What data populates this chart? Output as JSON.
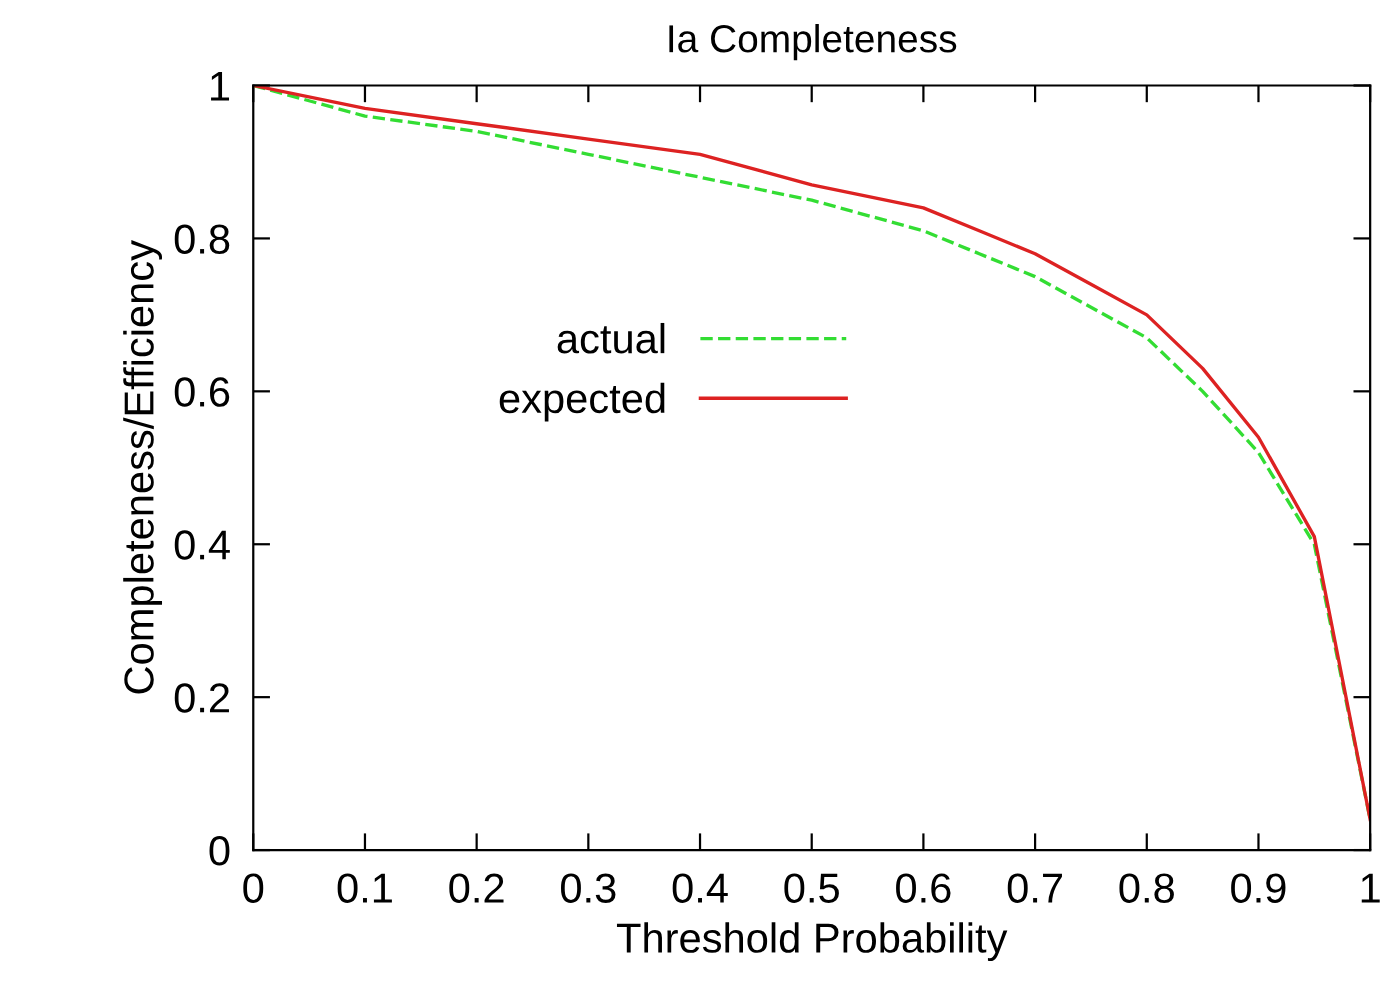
{
  "chart_data": {
    "type": "line",
    "title": "Ia Completeness",
    "xlabel": "Threshold Probability",
    "ylabel": "Completeness/Efficiency",
    "x": [
      0,
      0.1,
      0.2,
      0.3,
      0.4,
      0.5,
      0.6,
      0.65,
      0.7,
      0.75,
      0.8,
      0.85,
      0.9,
      0.95,
      1.0
    ],
    "series": [
      {
        "name": "actual",
        "color": "#33dd33",
        "line_style": "dashed",
        "values": [
          1,
          0.96,
          0.94,
          0.91,
          0.88,
          0.85,
          0.81,
          0.78,
          0.75,
          0.71,
          0.67,
          0.6,
          0.52,
          0.4,
          0.04
        ]
      },
      {
        "name": "expected",
        "color": "#dd2222",
        "line_style": "solid",
        "values": [
          1,
          0.97,
          0.95,
          0.93,
          0.91,
          0.87,
          0.84,
          0.81,
          0.78,
          0.74,
          0.7,
          0.63,
          0.54,
          0.41,
          0.04
        ]
      }
    ],
    "xlim": [
      0,
      1
    ],
    "xticks": [
      0,
      0.1,
      0.2,
      0.3,
      0.4,
      0.5,
      0.6,
      0.7,
      0.8,
      0.9,
      1
    ],
    "ylim": [
      0,
      1
    ],
    "yticks": [
      0,
      0.2,
      0.4,
      0.6,
      0.8,
      1
    ],
    "grid": false,
    "legend": "center",
    "marker": "none"
  }
}
